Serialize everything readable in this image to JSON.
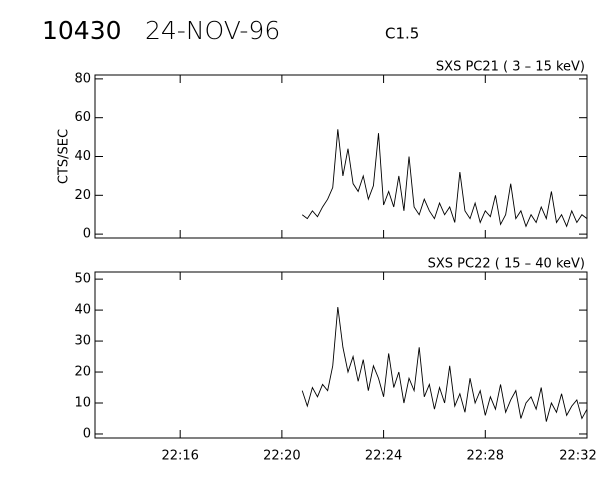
{
  "header": {
    "event": "10430",
    "date": "24-NOV-96",
    "class": "C1.5"
  },
  "chart_data": [
    {
      "type": "line",
      "title": "SXS PC21  (  3 – 15 keV)",
      "ylabel": "CTS/SEC",
      "color": "#000000",
      "x": [
        1340.8,
        1341.0,
        1341.2,
        1341.4,
        1341.6,
        1341.8,
        1342.0,
        1342.2,
        1342.4,
        1342.6,
        1342.8,
        1343.0,
        1343.2,
        1343.4,
        1343.6,
        1343.8,
        1344.0,
        1344.2,
        1344.4,
        1344.6,
        1344.8,
        1345.0,
        1345.2,
        1345.4,
        1345.6,
        1345.8,
        1346.0,
        1346.2,
        1346.4,
        1346.6,
        1346.8,
        1347.0,
        1347.2,
        1347.4,
        1347.6,
        1347.8,
        1348.0,
        1348.2,
        1348.4,
        1348.6,
        1348.8,
        1349.0,
        1349.2,
        1349.4,
        1349.6,
        1349.8,
        1350.0,
        1350.2,
        1350.4,
        1350.6,
        1350.8,
        1351.0,
        1351.2,
        1351.4,
        1351.6,
        1351.8,
        1352.0
      ],
      "values": [
        10,
        8,
        12,
        9,
        14,
        18,
        24,
        54,
        30,
        44,
        26,
        22,
        30,
        18,
        25,
        52,
        15,
        22,
        14,
        30,
        12,
        40,
        14,
        10,
        18,
        12,
        8,
        16,
        10,
        14,
        6,
        32,
        12,
        8,
        16,
        6,
        12,
        9,
        20,
        5,
        10,
        26,
        8,
        12,
        4,
        10,
        6,
        14,
        8,
        22,
        6,
        10,
        4,
        12,
        6,
        10,
        8
      ],
      "xlim": [
        1332.65,
        1352
      ],
      "xticks": [
        1336,
        1340,
        1344,
        1348,
        1352
      ],
      "ylim": [
        -2,
        82
      ],
      "yticks": [
        0,
        20,
        40,
        60,
        80
      ]
    },
    {
      "type": "line",
      "title": "SXS PC22  ( 15 – 40 keV)",
      "color": "#000000",
      "x": [
        1340.8,
        1341.0,
        1341.2,
        1341.4,
        1341.6,
        1341.8,
        1342.0,
        1342.2,
        1342.4,
        1342.6,
        1342.8,
        1343.0,
        1343.2,
        1343.4,
        1343.6,
        1343.8,
        1344.0,
        1344.2,
        1344.4,
        1344.6,
        1344.8,
        1345.0,
        1345.2,
        1345.4,
        1345.6,
        1345.8,
        1346.0,
        1346.2,
        1346.4,
        1346.6,
        1346.8,
        1347.0,
        1347.2,
        1347.4,
        1347.6,
        1347.8,
        1348.0,
        1348.2,
        1348.4,
        1348.6,
        1348.8,
        1349.0,
        1349.2,
        1349.4,
        1349.6,
        1349.8,
        1350.0,
        1350.2,
        1350.4,
        1350.6,
        1350.8,
        1351.0,
        1351.2,
        1351.4,
        1351.6,
        1351.8,
        1352.0
      ],
      "values": [
        14,
        9,
        15,
        12,
        16,
        14,
        22,
        41,
        28,
        20,
        25,
        17,
        24,
        14,
        22,
        18,
        12,
        26,
        15,
        20,
        10,
        18,
        14,
        28,
        12,
        16,
        8,
        15,
        10,
        22,
        9,
        13,
        7,
        18,
        10,
        14,
        6,
        12,
        8,
        16,
        7,
        11,
        14,
        5,
        10,
        12,
        8,
        15,
        4,
        10,
        7,
        13,
        6,
        9,
        11,
        5,
        8
      ],
      "xlim": [
        1332.65,
        1352
      ],
      "xticks": [
        {
          "value": 1336,
          "label": "22:16"
        },
        {
          "value": 1340,
          "label": "22:20"
        },
        {
          "value": 1344,
          "label": "22:24"
        },
        {
          "value": 1348,
          "label": "22:28"
        },
        {
          "value": 1352,
          "label": "22:32"
        }
      ],
      "ylim": [
        -1.3,
        52.3
      ],
      "yticks": [
        0,
        10,
        20,
        30,
        40,
        50
      ]
    }
  ]
}
